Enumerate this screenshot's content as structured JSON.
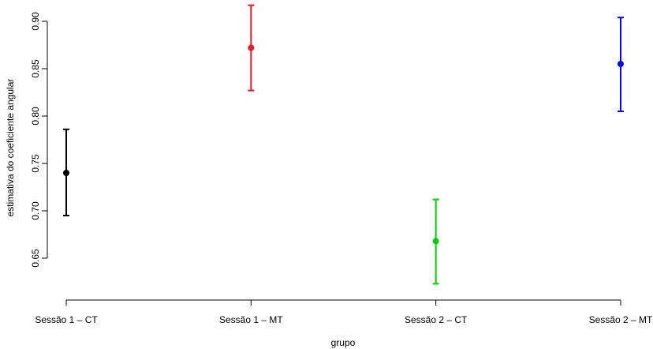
{
  "chart_data": {
    "type": "scatter",
    "subtype": "point-with-error-bars",
    "xlabel": "grupo",
    "ylabel": "estimativa do coeficiente angular",
    "categories": [
      "Sessão 1 – CT",
      "Sessão 1 – MT",
      "Sessão 2 – CT",
      "Sessão 2 – MT"
    ],
    "points": [
      {
        "category": "Sessão 1 – CT",
        "y": 0.74,
        "lower": 0.695,
        "upper": 0.786,
        "color": "#000000"
      },
      {
        "category": "Sessão 1 – MT",
        "y": 0.872,
        "lower": 0.827,
        "upper": 0.917,
        "color": "#e31a1c"
      },
      {
        "category": "Sessão 2 – CT",
        "y": 0.668,
        "lower": 0.623,
        "upper": 0.712,
        "color": "#00cc00"
      },
      {
        "category": "Sessão 2 – MT",
        "y": 0.855,
        "lower": 0.805,
        "upper": 0.904,
        "color": "#0000ff"
      }
    ],
    "yticks": [
      "0.65",
      "0.70",
      "0.75",
      "0.80",
      "0.85",
      "0.90"
    ],
    "ytick_values": [
      0.65,
      0.7,
      0.75,
      0.8,
      0.85,
      0.9
    ],
    "ylim": [
      0.6175,
      0.9225
    ],
    "grid": false
  }
}
